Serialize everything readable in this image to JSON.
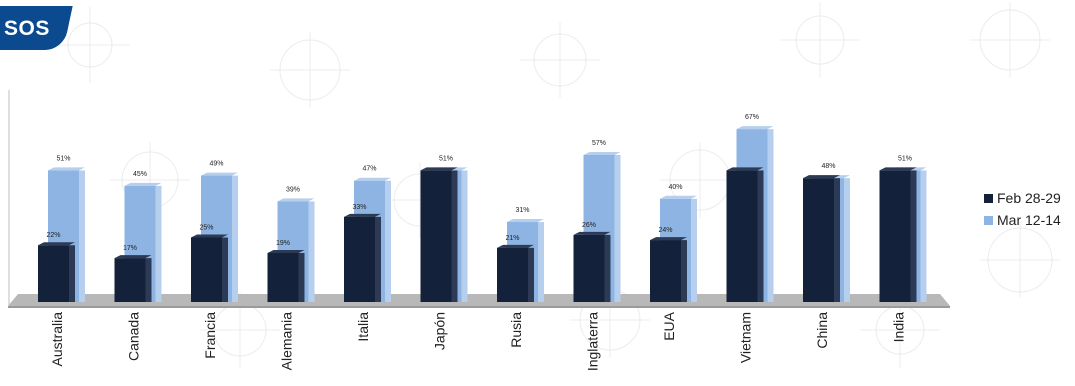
{
  "logo": {
    "text": "SOS"
  },
  "colors": {
    "feb": "#13213a",
    "mar": "#8db4e2",
    "floor": "#b8b8b8",
    "watermark": "#c9c9cf"
  },
  "chart_data": {
    "type": "bar",
    "categories": [
      "Australia",
      "Canada",
      "Francia",
      "Alemania",
      "Italia",
      "Japón",
      "Rusia",
      "Inglaterra",
      "EUA",
      "Vietnam",
      "China",
      "India"
    ],
    "series": [
      {
        "name": "Feb 28-29",
        "values": [
          22,
          17,
          25,
          19,
          33,
          51,
          21,
          26,
          24,
          51,
          48,
          51
        ],
        "labels": [
          "22%",
          "17%",
          "25%",
          "19%",
          "33%",
          "",
          "21%",
          "26%",
          "24%",
          "",
          "",
          ""
        ]
      },
      {
        "name": "Mar 12-14",
        "values": [
          51,
          45,
          49,
          39,
          47,
          51,
          31,
          57,
          40,
          67,
          48,
          51
        ],
        "labels": [
          "51%",
          "45%",
          "49%",
          "39%",
          "47%",
          "51%",
          "31%",
          "57%",
          "40%",
          "67%",
          "48%",
          "51%"
        ]
      }
    ],
    "title": "",
    "xlabel": "",
    "ylabel": "",
    "ylim": [
      0,
      70
    ],
    "legend_position": "right",
    "grid": false
  }
}
